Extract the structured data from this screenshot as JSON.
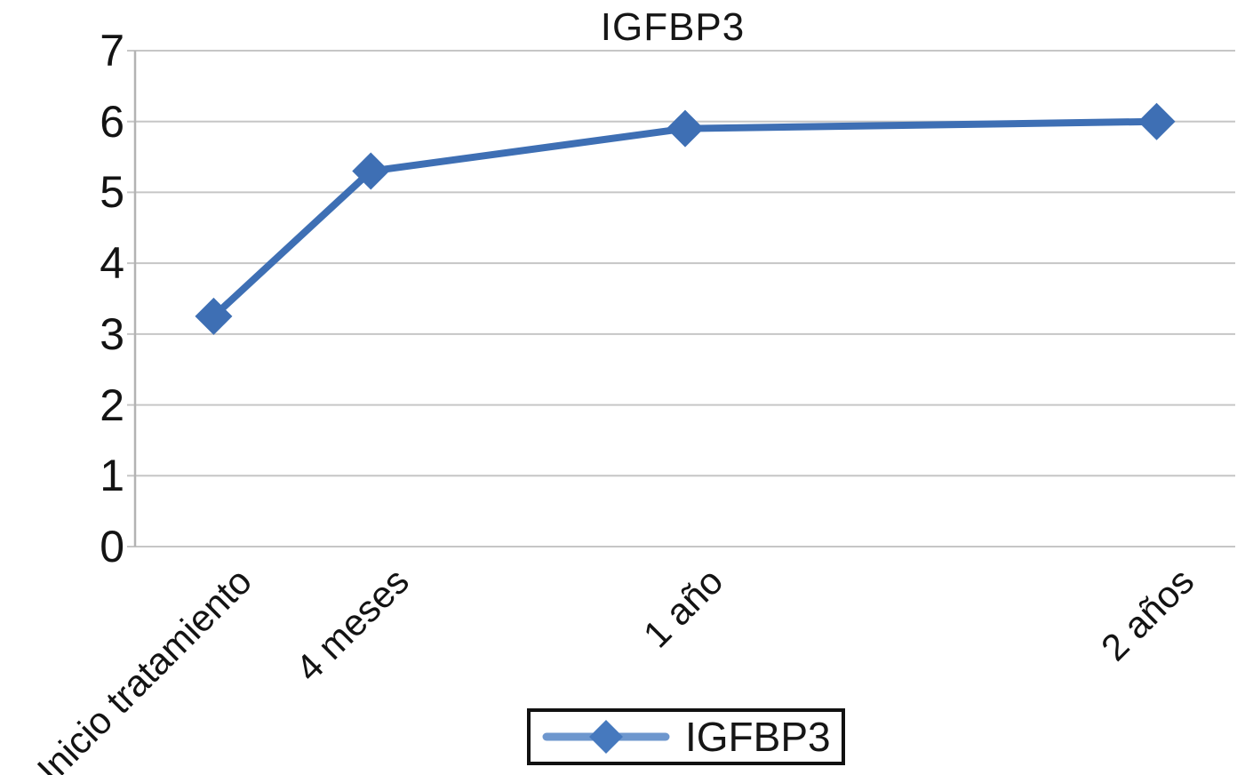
{
  "chart_data": {
    "type": "line",
    "title": "IGFBP3",
    "categories": [
      "Inicio tratamiento",
      "4 meses",
      "1 año",
      "2 años"
    ],
    "x": [
      0,
      4,
      12,
      24
    ],
    "x_unit": "months",
    "x_range": [
      -2,
      26
    ],
    "values": [
      3.25,
      5.3,
      5.9,
      6.0
    ],
    "series": [
      {
        "name": "IGFBP3",
        "values": [
          3.25,
          5.3,
          5.9,
          6.0
        ],
        "marker": "diamond"
      }
    ],
    "yticks": [
      0,
      1,
      2,
      3,
      4,
      5,
      6,
      7
    ],
    "ylim": [
      0,
      7
    ],
    "xlabel": "",
    "ylabel": "",
    "grid": "horizontal",
    "legend": {
      "position": "bottom",
      "entries": [
        "IGFBP3"
      ]
    },
    "colors": {
      "series": "#3E6FB4",
      "legend_line": "#6E97CE",
      "legend_marker": "#4679BE",
      "gridline": "#C6C6C6",
      "axis": "#B3B3B3",
      "text": "#131313",
      "background": "#FFFFFF"
    }
  }
}
